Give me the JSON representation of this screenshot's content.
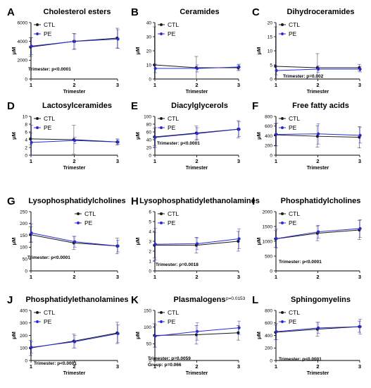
{
  "chart_data": [
    {
      "id": "A",
      "type": "line",
      "title": "Cholesterol esters",
      "xlabel": "Trimester",
      "ylabel": "μM",
      "categories": [
        "1",
        "2",
        "3"
      ],
      "ylim": [
        0,
        6000
      ],
      "yticks": [
        "0",
        "2000",
        "4000",
        "6000"
      ],
      "legend_position": "top-left",
      "series": [
        {
          "name": "CTL",
          "values": [
            3400,
            4000,
            4350
          ],
          "err": [
            1000,
            850,
            1050
          ]
        },
        {
          "name": "PE",
          "values": [
            3500,
            4000,
            4250
          ],
          "err": [
            900,
            800,
            1000
          ]
        }
      ],
      "annotations": [
        "Trimester: p<0.0001"
      ]
    },
    {
      "id": "B",
      "type": "line",
      "title": "Ceramides",
      "xlabel": "Trimester",
      "ylabel": "μM",
      "categories": [
        "1",
        "2",
        "3"
      ],
      "ylim": [
        0,
        40
      ],
      "yticks": [
        "0",
        "10",
        "20",
        "30",
        "40"
      ],
      "legend_position": "top-left",
      "series": [
        {
          "name": "CTL",
          "values": [
            10,
            8,
            8
          ],
          "err": [
            27,
            8,
            2
          ]
        },
        {
          "name": "PE",
          "values": [
            7.5,
            7.5,
            8.5
          ],
          "err": [
            3,
            2.5,
            2
          ]
        }
      ],
      "annotations": []
    },
    {
      "id": "C",
      "type": "line",
      "title": "Dihydroceramides",
      "xlabel": "Trimester",
      "ylabel": "μM",
      "categories": [
        "1",
        "2",
        "3"
      ],
      "ylim": [
        0,
        20
      ],
      "yticks": [
        "0",
        "5",
        "10",
        "15",
        "20"
      ],
      "legend_position": "top-left",
      "series": [
        {
          "name": "CTL",
          "values": [
            4.5,
            4,
            4
          ],
          "err": [
            14,
            5,
            1.2
          ]
        },
        {
          "name": "PE",
          "values": [
            3,
            3.5,
            3.5
          ],
          "err": [
            1.5,
            1.2,
            1
          ]
        }
      ],
      "annotations": [
        "Trimester: p=0.002"
      ]
    },
    {
      "id": "D",
      "type": "line",
      "title": "Lactosylceramides",
      "xlabel": "Trimester",
      "ylabel": "μM",
      "categories": [
        "1",
        "2",
        "3"
      ],
      "ylim": [
        0,
        10
      ],
      "yticks": [
        "0",
        "2",
        "4",
        "6",
        "8",
        "10"
      ],
      "legend_position": "top-left",
      "series": [
        {
          "name": "CTL",
          "values": [
            4.2,
            4.0,
            3.4
          ],
          "err": [
            1.5,
            3.7,
            0.8
          ]
        },
        {
          "name": "PE",
          "values": [
            3.3,
            3.8,
            3.4
          ],
          "err": [
            4.4,
            0.8,
            0.6
          ]
        }
      ],
      "annotations": []
    },
    {
      "id": "E",
      "type": "line",
      "title": "Diacylglycerols",
      "xlabel": "Trimester",
      "ylabel": "μM",
      "categories": [
        "1",
        "2",
        "3"
      ],
      "ylim": [
        0,
        100
      ],
      "yticks": [
        "0",
        "20",
        "40",
        "60",
        "80",
        "100"
      ],
      "legend_position": "top-left",
      "series": [
        {
          "name": "CTL",
          "values": [
            47,
            57,
            67
          ],
          "err": [
            22,
            18,
            22
          ]
        },
        {
          "name": "PE",
          "values": [
            46,
            56,
            67
          ],
          "err": [
            26,
            15,
            19
          ]
        }
      ],
      "annotations": [
        "Trimester: p<0.0001"
      ]
    },
    {
      "id": "F",
      "type": "line",
      "title": "Free fatty acids",
      "xlabel": "Trimester",
      "ylabel": "μM",
      "categories": [
        "1",
        "2",
        "3"
      ],
      "ylim": [
        0,
        800
      ],
      "yticks": [
        "0",
        "200",
        "400",
        "600",
        "800"
      ],
      "legend_position": "top-left",
      "series": [
        {
          "name": "CTL",
          "values": [
            420,
            390,
            370
          ],
          "err": [
            230,
            220,
            220
          ]
        },
        {
          "name": "PE",
          "values": [
            430,
            440,
            410
          ],
          "err": [
            230,
            210,
            160
          ]
        }
      ],
      "annotations": []
    },
    {
      "id": "G",
      "type": "line",
      "title": "Lysophosphatidylcholines",
      "xlabel": "",
      "ylabel": "μM",
      "categories": [
        "1",
        "2",
        "3"
      ],
      "ylim": [
        0,
        250
      ],
      "yticks": [
        "0",
        "50",
        "100",
        "150",
        "200",
        "250"
      ],
      "legend_position": "top-right",
      "series": [
        {
          "name": "CTL",
          "values": [
            153,
            118,
            105
          ],
          "err": [
            33,
            28,
            33
          ]
        },
        {
          "name": "PE",
          "values": [
            160,
            123,
            105
          ],
          "err": [
            38,
            23,
            25
          ]
        }
      ],
      "annotations": [
        "Trimester: p<0.0001"
      ]
    },
    {
      "id": "H",
      "type": "line",
      "title": "Lysophosphatidylethanolamines",
      "xlabel": "",
      "ylabel": "μM",
      "categories": [
        "1",
        "2",
        "3"
      ],
      "ylim": [
        0,
        6
      ],
      "yticks": [
        "0",
        "1",
        "2",
        "3",
        "4",
        "5",
        "6"
      ],
      "legend_position": "top-left",
      "series": [
        {
          "name": "CTL",
          "values": [
            2.6,
            2.6,
            3.0
          ],
          "err": [
            1.3,
            0.8,
            1.0
          ]
        },
        {
          "name": "PE",
          "values": [
            2.7,
            2.75,
            3.25
          ],
          "err": [
            1.6,
            0.6,
            1.0
          ]
        }
      ],
      "annotations": [
        "Trimester: p=0.0018"
      ]
    },
    {
      "id": "I",
      "type": "line",
      "title": "Phosphatidylcholines",
      "xlabel": "",
      "ylabel": "μM",
      "categories": [
        "1",
        "2",
        "3"
      ],
      "ylim": [
        0,
        2000
      ],
      "yticks": [
        "0",
        "500",
        "1000",
        "1500",
        "2000"
      ],
      "legend_position": "top-left",
      "series": [
        {
          "name": "CTL",
          "values": [
            1080,
            1270,
            1380
          ],
          "err": [
            280,
            250,
            320
          ]
        },
        {
          "name": "PE",
          "values": [
            1090,
            1320,
            1430
          ],
          "err": [
            320,
            220,
            300
          ]
        }
      ],
      "annotations": [
        "Trimester: p<0.0001"
      ]
    },
    {
      "id": "J",
      "type": "line",
      "title": "Phosphatidylethanolamines",
      "xlabel": "Trimester",
      "ylabel": "μM",
      "categories": [
        "1",
        "2",
        "3"
      ],
      "ylim": [
        0,
        400
      ],
      "yticks": [
        "0",
        "100",
        "200",
        "300",
        "400"
      ],
      "legend_position": "top-left",
      "series": [
        {
          "name": "CTL",
          "values": [
            100,
            155,
            220
          ],
          "err": [
            60,
            55,
            85
          ]
        },
        {
          "name": "PE",
          "values": [
            105,
            150,
            215
          ],
          "err": [
            45,
            50,
            70
          ]
        }
      ],
      "annotations": [
        "Trimester: p<0.0001"
      ]
    },
    {
      "id": "K",
      "type": "line",
      "title": "Plasmalogens",
      "xlabel": "Trimester",
      "ylabel": "μM",
      "categories": [
        "1",
        "2",
        "3"
      ],
      "ylim": [
        0,
        150
      ],
      "yticks": [
        "0",
        "50",
        "100",
        "150"
      ],
      "legend_position": "top-left",
      "series": [
        {
          "name": "CTL",
          "values": [
            75,
            77,
            83
          ],
          "err": [
            35,
            28,
            22
          ]
        },
        {
          "name": "PE",
          "values": [
            73,
            87,
            98
          ],
          "err": [
            33,
            26,
            20
          ]
        }
      ],
      "annotations": [
        "Trimester: p=0.0059",
        "Group: p=0.066",
        "p=0.0153"
      ]
    },
    {
      "id": "L",
      "type": "line",
      "title": "Sphingomyelins",
      "xlabel": "Trimester",
      "ylabel": "μM",
      "categories": [
        "1",
        "2",
        "3"
      ],
      "ylim": [
        0,
        800
      ],
      "yticks": [
        "0",
        "200",
        "400",
        "600",
        "800"
      ],
      "legend_position": "top-left",
      "series": [
        {
          "name": "CTL",
          "values": [
            450,
            500,
            540
          ],
          "err": [
            120,
            110,
            90
          ]
        },
        {
          "name": "PE",
          "values": [
            460,
            520,
            540
          ],
          "err": [
            130,
            90,
            120
          ]
        }
      ],
      "annotations": [
        "Trimester: p<0.0001"
      ]
    }
  ],
  "colors": {
    "CTL": "#1a1a1a",
    "PE": "#2b2bd4"
  }
}
